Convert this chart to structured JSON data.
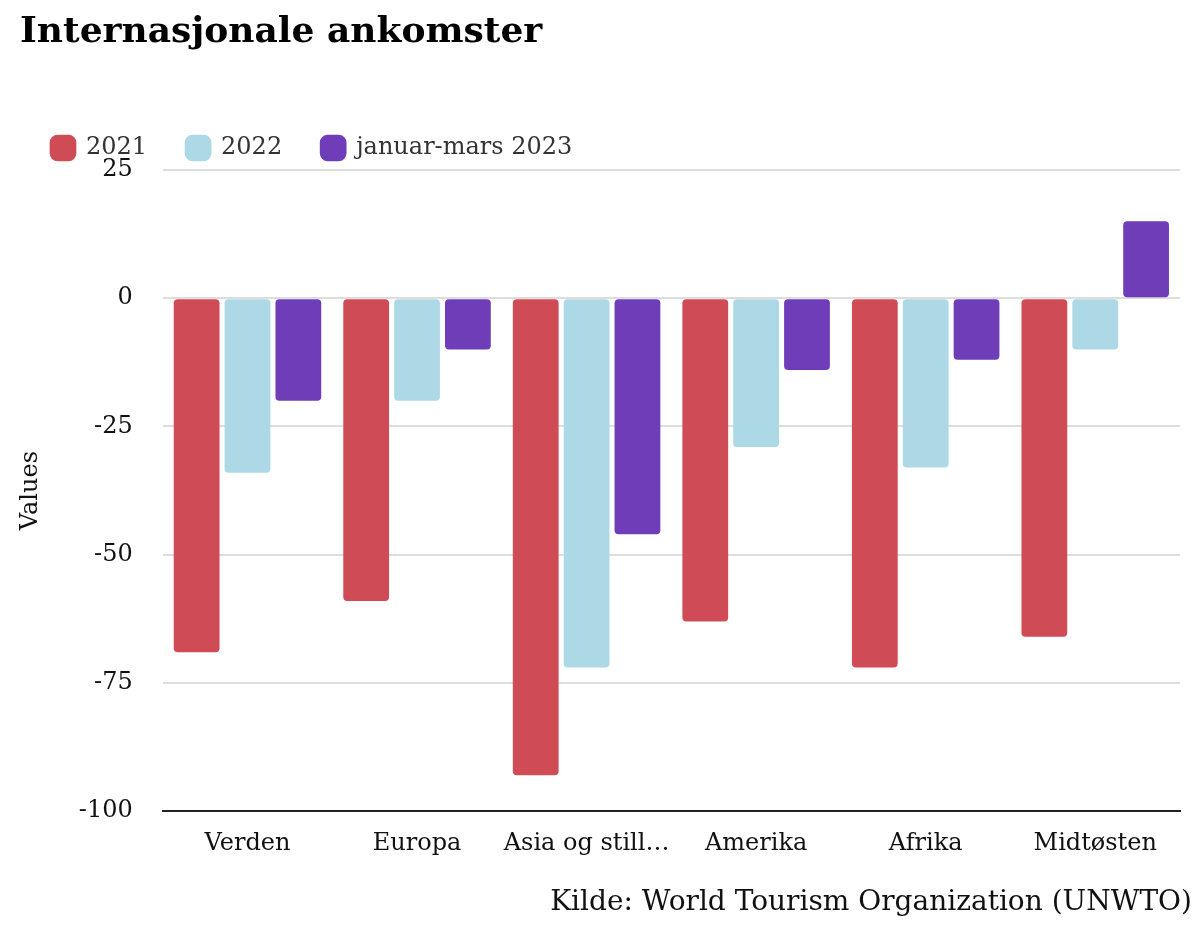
{
  "chart_data": {
    "type": "bar",
    "title": "Internasjonale ankomster",
    "ylabel": "Values",
    "categories": [
      "Verden",
      "Europa",
      "Asia og still…",
      "Amerika",
      "Afrika",
      "Midtøsten"
    ],
    "series": [
      {
        "name": "2021",
        "color": "#cf4b56",
        "values": [
          -69,
          -59,
          -93,
          -63,
          -72,
          -66
        ]
      },
      {
        "name": "2022",
        "color": "#add8e6",
        "values": [
          -34,
          -20,
          -72,
          -29,
          -33,
          -10
        ]
      },
      {
        "name": "januar-mars 2023",
        "color": "#6f3db8",
        "values": [
          -20,
          -10,
          -46,
          -14,
          -12,
          15
        ]
      }
    ],
    "ylim": [
      -100,
      25
    ],
    "yticks": [
      -100,
      -75,
      -50,
      -25,
      0,
      25
    ],
    "grid": "y",
    "legend": "top left",
    "annotations": [
      "Kilde: World Tourism Organization (UNWTO)"
    ]
  }
}
